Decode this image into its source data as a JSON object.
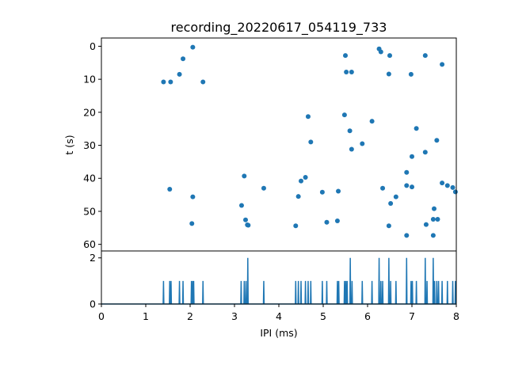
{
  "chart_data": [
    {
      "type": "scatter",
      "title": "recording_20220617_054119_733",
      "xlabel": "",
      "ylabel": "t (s)",
      "xlim": [
        0,
        8
      ],
      "ylim": [
        62,
        -2.5
      ],
      "y_inverted": true,
      "yticks": [
        0,
        10,
        20,
        30,
        40,
        50,
        60
      ],
      "color": "#1f77b4",
      "points": [
        {
          "x": 2.06,
          "y": 0.3
        },
        {
          "x": 1.84,
          "y": 3.8
        },
        {
          "x": 1.76,
          "y": 8.5
        },
        {
          "x": 1.4,
          "y": 10.8
        },
        {
          "x": 1.56,
          "y": 10.8
        },
        {
          "x": 2.29,
          "y": 10.8
        },
        {
          "x": 1.54,
          "y": 43.3
        },
        {
          "x": 2.06,
          "y": 45.6
        },
        {
          "x": 2.04,
          "y": 53.7
        },
        {
          "x": 3.22,
          "y": 39.3
        },
        {
          "x": 3.66,
          "y": 43.0
        },
        {
          "x": 3.16,
          "y": 48.2
        },
        {
          "x": 3.25,
          "y": 52.6
        },
        {
          "x": 3.29,
          "y": 54.1
        },
        {
          "x": 3.31,
          "y": 54.2
        },
        {
          "x": 4.66,
          "y": 21.3
        },
        {
          "x": 4.72,
          "y": 29.0
        },
        {
          "x": 4.6,
          "y": 39.7
        },
        {
          "x": 4.5,
          "y": 40.8
        },
        {
          "x": 4.44,
          "y": 45.5
        },
        {
          "x": 4.38,
          "y": 54.4
        },
        {
          "x": 4.98,
          "y": 44.2
        },
        {
          "x": 5.08,
          "y": 53.3
        },
        {
          "x": 5.34,
          "y": 43.9
        },
        {
          "x": 5.32,
          "y": 52.9
        },
        {
          "x": 5.5,
          "y": 2.8
        },
        {
          "x": 5.52,
          "y": 7.8
        },
        {
          "x": 5.64,
          "y": 7.8
        },
        {
          "x": 5.48,
          "y": 20.8
        },
        {
          "x": 5.6,
          "y": 25.6
        },
        {
          "x": 5.64,
          "y": 31.2
        },
        {
          "x": 5.88,
          "y": 29.5
        },
        {
          "x": 6.1,
          "y": 22.7
        },
        {
          "x": 6.26,
          "y": 0.8
        },
        {
          "x": 6.3,
          "y": 1.7
        },
        {
          "x": 6.5,
          "y": 2.8
        },
        {
          "x": 6.48,
          "y": 8.4
        },
        {
          "x": 6.34,
          "y": 43.0
        },
        {
          "x": 6.64,
          "y": 45.6
        },
        {
          "x": 6.52,
          "y": 47.6
        },
        {
          "x": 6.48,
          "y": 54.4
        },
        {
          "x": 6.88,
          "y": 57.3
        },
        {
          "x": 6.98,
          "y": 8.5
        },
        {
          "x": 7.1,
          "y": 24.9
        },
        {
          "x": 7.0,
          "y": 33.4
        },
        {
          "x": 6.88,
          "y": 38.2
        },
        {
          "x": 6.88,
          "y": 42.2
        },
        {
          "x": 7.0,
          "y": 42.6
        },
        {
          "x": 7.3,
          "y": 2.8
        },
        {
          "x": 7.3,
          "y": 32.1
        },
        {
          "x": 7.56,
          "y": 28.5
        },
        {
          "x": 7.5,
          "y": 49.2
        },
        {
          "x": 7.48,
          "y": 52.4
        },
        {
          "x": 7.58,
          "y": 52.4
        },
        {
          "x": 7.32,
          "y": 54.0
        },
        {
          "x": 7.48,
          "y": 57.3
        },
        {
          "x": 7.68,
          "y": 5.5
        },
        {
          "x": 7.68,
          "y": 41.4
        },
        {
          "x": 7.8,
          "y": 42.2
        },
        {
          "x": 7.92,
          "y": 42.8
        },
        {
          "x": 7.98,
          "y": 44.1
        }
      ]
    },
    {
      "type": "line",
      "title": "",
      "xlabel": "IPI (ms)",
      "ylabel": "",
      "xlim": [
        0,
        8
      ],
      "ylim": [
        0,
        2.3
      ],
      "xticks": [
        0,
        1,
        2,
        3,
        4,
        5,
        6,
        7,
        8
      ],
      "yticks": [
        0,
        2
      ],
      "color": "#1f77b4",
      "spikes": [
        {
          "x": 1.4,
          "y": 1
        },
        {
          "x": 1.54,
          "y": 1
        },
        {
          "x": 1.57,
          "y": 1
        },
        {
          "x": 1.76,
          "y": 1
        },
        {
          "x": 1.84,
          "y": 1
        },
        {
          "x": 2.03,
          "y": 1
        },
        {
          "x": 2.06,
          "y": 1
        },
        {
          "x": 2.08,
          "y": 1
        },
        {
          "x": 2.29,
          "y": 1
        },
        {
          "x": 3.15,
          "y": 1
        },
        {
          "x": 3.22,
          "y": 1
        },
        {
          "x": 3.26,
          "y": 1
        },
        {
          "x": 3.3,
          "y": 2
        },
        {
          "x": 3.66,
          "y": 1
        },
        {
          "x": 4.38,
          "y": 1
        },
        {
          "x": 4.44,
          "y": 1
        },
        {
          "x": 4.5,
          "y": 1
        },
        {
          "x": 4.6,
          "y": 1
        },
        {
          "x": 4.66,
          "y": 1
        },
        {
          "x": 4.72,
          "y": 1
        },
        {
          "x": 4.98,
          "y": 1
        },
        {
          "x": 5.08,
          "y": 1
        },
        {
          "x": 5.32,
          "y": 1
        },
        {
          "x": 5.35,
          "y": 1
        },
        {
          "x": 5.48,
          "y": 1
        },
        {
          "x": 5.51,
          "y": 1
        },
        {
          "x": 5.54,
          "y": 1
        },
        {
          "x": 5.61,
          "y": 2
        },
        {
          "x": 5.65,
          "y": 1
        },
        {
          "x": 5.88,
          "y": 1
        },
        {
          "x": 6.1,
          "y": 1
        },
        {
          "x": 6.26,
          "y": 2
        },
        {
          "x": 6.3,
          "y": 1
        },
        {
          "x": 6.34,
          "y": 1
        },
        {
          "x": 6.48,
          "y": 2
        },
        {
          "x": 6.52,
          "y": 1
        },
        {
          "x": 6.64,
          "y": 1
        },
        {
          "x": 6.88,
          "y": 2
        },
        {
          "x": 6.98,
          "y": 1
        },
        {
          "x": 7.01,
          "y": 1
        },
        {
          "x": 7.1,
          "y": 1
        },
        {
          "x": 7.3,
          "y": 2
        },
        {
          "x": 7.34,
          "y": 1
        },
        {
          "x": 7.48,
          "y": 2
        },
        {
          "x": 7.51,
          "y": 1
        },
        {
          "x": 7.56,
          "y": 1
        },
        {
          "x": 7.6,
          "y": 1
        },
        {
          "x": 7.68,
          "y": 1
        },
        {
          "x": 7.8,
          "y": 1
        },
        {
          "x": 7.92,
          "y": 1
        },
        {
          "x": 7.98,
          "y": 1
        }
      ]
    }
  ]
}
